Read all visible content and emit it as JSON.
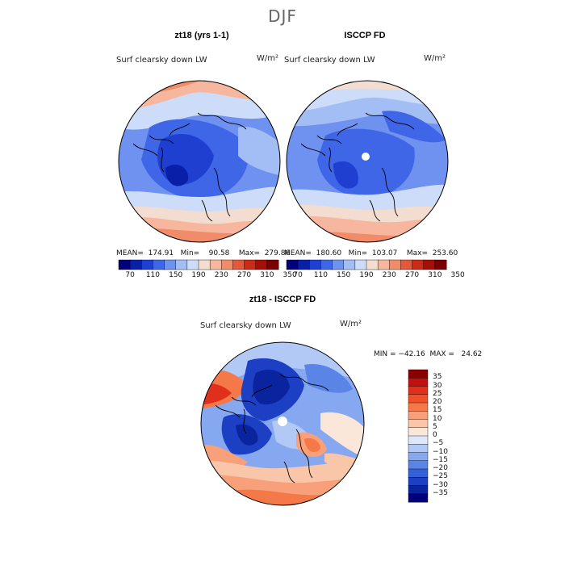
{
  "title": "DJF",
  "panels": [
    {
      "title": "zt18 (yrs 1-1)",
      "variable": "Surf clearsky down LW",
      "units": "W/m²",
      "stats": "MEAN=  174.91   Min=    90.58    Max=  279.86"
    },
    {
      "title": "ISCCP FD",
      "variable": "Surf clearsky down LW",
      "units": "W/m²",
      "stats": "MEAN=  180.60   Min=  103.07    Max=  253.60"
    },
    {
      "title": "zt18 - ISCCP FD",
      "variable": "Surf clearsky down LW",
      "units": "W/m²",
      "stats": "MIN = −42.16  MAX =   24.62"
    }
  ],
  "colorbars": {
    "absolute": {
      "labels": [
        "70",
        "110",
        "150",
        "190",
        "230",
        "270",
        "310",
        "350"
      ],
      "colors": [
        "#00007a",
        "#0a1fa8",
        "#1e3fd0",
        "#3f66e6",
        "#6f92f0",
        "#a3bdf5",
        "#cddcf8",
        "#f3ddd0",
        "#f7b79e",
        "#f08c69",
        "#e4583b",
        "#cc2b18",
        "#a50f07",
        "#780000"
      ]
    },
    "difference": {
      "labels": [
        "35",
        "30",
        "25",
        "20",
        "15",
        "10",
        "5",
        "0",
        "−5",
        "−10",
        "−15",
        "−20",
        "−25",
        "−30",
        "−35"
      ],
      "colors": [
        "#8b0000",
        "#c01010",
        "#e0301b",
        "#f05028",
        "#f47848",
        "#f7a07a",
        "#f9c6aa",
        "#fbe7da",
        "#dde8fa",
        "#b2c9f6",
        "#86a8f0",
        "#5a84e6",
        "#3560da",
        "#1c3fc4",
        "#0a24a0",
        "#00007d"
      ]
    }
  }
}
